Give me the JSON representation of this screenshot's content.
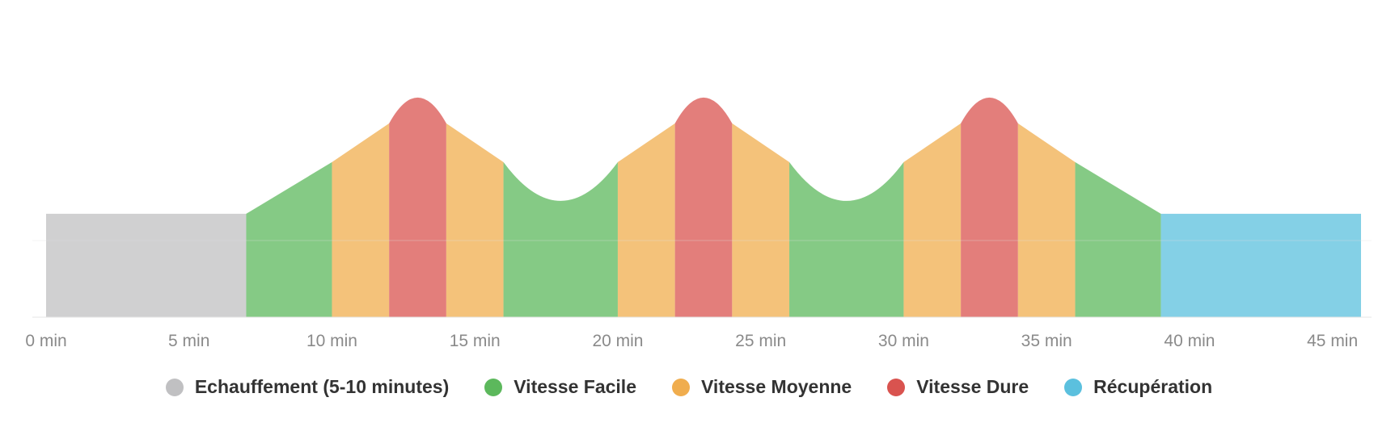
{
  "chart_data": {
    "type": "area",
    "title": "",
    "xlabel": "",
    "ylabel": "",
    "x_unit": "min",
    "xlim": [
      0,
      46
    ],
    "x_ticks": [
      0,
      5,
      10,
      15,
      20,
      25,
      30,
      35,
      40,
      45
    ],
    "x_tick_labels": [
      "0 min",
      "5 min",
      "10 min",
      "15 min",
      "20 min",
      "25 min",
      "30 min",
      "35 min",
      "40 min",
      "45 min"
    ],
    "ylim": [
      0,
      5.2
    ],
    "grid": false,
    "legend_position": "bottom",
    "segments": [
      {
        "series": 0,
        "points": [
          [
            0,
            2
          ],
          [
            7,
            2
          ]
        ]
      },
      {
        "series": 1,
        "points": [
          [
            7,
            2
          ],
          [
            10,
            3
          ]
        ]
      },
      {
        "series": 2,
        "points": [
          [
            10,
            3
          ],
          [
            12,
            3.75
          ]
        ]
      },
      {
        "series": 3,
        "points": [
          [
            12,
            3.75
          ],
          [
            13,
            4.25
          ],
          [
            14,
            3.75
          ]
        ]
      },
      {
        "series": 2,
        "points": [
          [
            14,
            3.75
          ],
          [
            16,
            3
          ]
        ]
      },
      {
        "series": 1,
        "points": [
          [
            16,
            3
          ],
          [
            18,
            2.25
          ],
          [
            20,
            3
          ]
        ]
      },
      {
        "series": 2,
        "points": [
          [
            20,
            3
          ],
          [
            22,
            3.75
          ]
        ]
      },
      {
        "series": 3,
        "points": [
          [
            22,
            3.75
          ],
          [
            23,
            4.25
          ],
          [
            24,
            3.75
          ]
        ]
      },
      {
        "series": 2,
        "points": [
          [
            24,
            3.75
          ],
          [
            26,
            3
          ]
        ]
      },
      {
        "series": 1,
        "points": [
          [
            26,
            3
          ],
          [
            28,
            2.25
          ],
          [
            30,
            3
          ]
        ]
      },
      {
        "series": 2,
        "points": [
          [
            30,
            3
          ],
          [
            32,
            3.75
          ]
        ]
      },
      {
        "series": 3,
        "points": [
          [
            32,
            3.75
          ],
          [
            33,
            4.25
          ],
          [
            34,
            3.75
          ]
        ]
      },
      {
        "series": 2,
        "points": [
          [
            34,
            3.75
          ],
          [
            36,
            3
          ]
        ]
      },
      {
        "series": 1,
        "points": [
          [
            36,
            3
          ],
          [
            39,
            2
          ]
        ]
      },
      {
        "series": 4,
        "points": [
          [
            39,
            2
          ],
          [
            46,
            2
          ]
        ]
      }
    ],
    "series": [
      {
        "name": "Echauffement (5-10 minutes)",
        "color": "#c0c0c2"
      },
      {
        "name": "Vitesse Facile",
        "color": "#5cb85c"
      },
      {
        "name": "Vitesse Moyenne",
        "color": "#f0ad4e"
      },
      {
        "name": "Vitesse Dure",
        "color": "#d9534f"
      },
      {
        "name": "Récupération",
        "color": "#5bc0de"
      }
    ]
  }
}
